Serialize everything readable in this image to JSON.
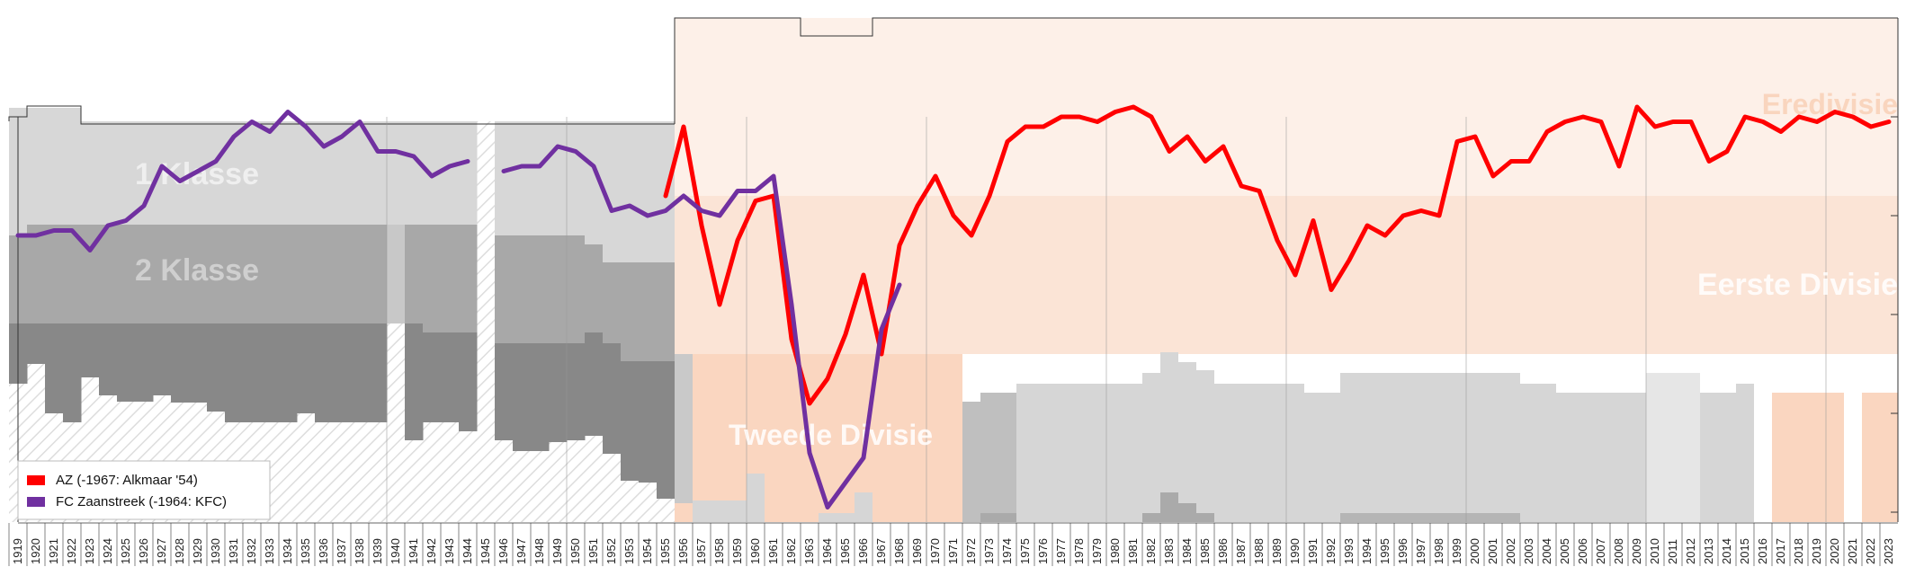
{
  "chart_data": {
    "type": "line",
    "x_start": 1919,
    "x_end": 2023,
    "y_inverted": true,
    "tiers": [
      {
        "name": "1 Klasse",
        "era": "pre-1956",
        "color": "#d7d7d7"
      },
      {
        "name": "2 Klasse",
        "era": "pre-1956",
        "color": "#a8a8a8"
      },
      {
        "name": "",
        "era": "pre-1956",
        "color": "#888888"
      },
      {
        "name": "Eredivisie",
        "era": "post-1956",
        "color": "#fdf0e8"
      },
      {
        "name": "Eerste Divisie",
        "era": "post-1956",
        "color": "#fbe4d6"
      },
      {
        "name": "Tweede Divisie",
        "era": "post-1956",
        "color": "#fad6c0"
      }
    ],
    "series": [
      {
        "name": "AZ (-1967: Alkmaar '54)",
        "color": "#ff0000",
        "points": [
          [
            1955,
            36
          ],
          [
            1956,
            22
          ],
          [
            1957,
            42
          ],
          [
            1958,
            58
          ],
          [
            1959,
            45
          ],
          [
            1960,
            37
          ],
          [
            1961,
            36
          ],
          [
            1962,
            65
          ],
          [
            1963,
            78
          ],
          [
            1964,
            73
          ],
          [
            1965,
            64
          ],
          [
            1966,
            52
          ],
          [
            1967,
            68
          ],
          [
            1968,
            46
          ],
          [
            1969,
            38
          ],
          [
            1970,
            32
          ],
          [
            1971,
            40
          ],
          [
            1972,
            44
          ],
          [
            1973,
            36
          ],
          [
            1974,
            25
          ],
          [
            1975,
            22
          ],
          [
            1976,
            22
          ],
          [
            1977,
            20
          ],
          [
            1978,
            20
          ],
          [
            1979,
            21
          ],
          [
            1980,
            19
          ],
          [
            1981,
            18
          ],
          [
            1982,
            20
          ],
          [
            1983,
            27
          ],
          [
            1984,
            24
          ],
          [
            1985,
            29
          ],
          [
            1986,
            26
          ],
          [
            1987,
            34
          ],
          [
            1988,
            35
          ],
          [
            1989,
            45
          ],
          [
            1990,
            52
          ],
          [
            1991,
            41
          ],
          [
            1992,
            55
          ],
          [
            1993,
            49
          ],
          [
            1994,
            42
          ],
          [
            1995,
            44
          ],
          [
            1996,
            40
          ],
          [
            1997,
            39
          ],
          [
            1998,
            40
          ],
          [
            1999,
            25
          ],
          [
            2000,
            24
          ],
          [
            2001,
            32
          ],
          [
            2002,
            29
          ],
          [
            2003,
            29
          ],
          [
            2004,
            23
          ],
          [
            2005,
            21
          ],
          [
            2006,
            20
          ],
          [
            2007,
            21
          ],
          [
            2008,
            30
          ],
          [
            2009,
            18
          ],
          [
            2010,
            22
          ],
          [
            2011,
            21
          ],
          [
            2012,
            21
          ],
          [
            2013,
            29
          ],
          [
            2014,
            27
          ],
          [
            2015,
            20
          ],
          [
            2016,
            21
          ],
          [
            2017,
            23
          ],
          [
            2018,
            20
          ],
          [
            2019,
            21
          ],
          [
            2020,
            19
          ],
          [
            2021,
            20
          ],
          [
            2022,
            22
          ],
          [
            2023,
            21
          ]
        ]
      },
      {
        "name": "FC Zaanstreek (-1964: KFC)",
        "color": "#7030a0",
        "segments": [
          [
            [
              1919,
              44
            ],
            [
              1920,
              44
            ],
            [
              1921,
              43
            ],
            [
              1922,
              43
            ],
            [
              1923,
              47
            ],
            [
              1924,
              42
            ],
            [
              1925,
              41
            ],
            [
              1926,
              38
            ],
            [
              1927,
              30
            ],
            [
              1928,
              33
            ],
            [
              1929,
              31
            ],
            [
              1930,
              29
            ],
            [
              1931,
              24
            ],
            [
              1932,
              21
            ],
            [
              1933,
              23
            ],
            [
              1934,
              19
            ],
            [
              1935,
              22
            ],
            [
              1936,
              26
            ],
            [
              1937,
              24
            ],
            [
              1938,
              21
            ],
            [
              1939,
              27
            ],
            [
              1940,
              27
            ],
            [
              1941,
              28
            ],
            [
              1942,
              32
            ],
            [
              1943,
              30
            ],
            [
              1944,
              29
            ]
          ],
          [
            [
              1946,
              31
            ],
            [
              1947,
              30
            ],
            [
              1948,
              30
            ],
            [
              1949,
              26
            ],
            [
              1950,
              27
            ],
            [
              1951,
              30
            ],
            [
              1952,
              39
            ],
            [
              1953,
              38
            ],
            [
              1954,
              40
            ],
            [
              1955,
              39
            ],
            [
              1956,
              36
            ],
            [
              1957,
              39
            ],
            [
              1958,
              40
            ],
            [
              1959,
              35
            ],
            [
              1960,
              35
            ],
            [
              1961,
              32
            ],
            [
              1962,
              58
            ],
            [
              1963,
              88
            ],
            [
              1964,
              99
            ],
            [
              1965,
              94
            ],
            [
              1966,
              89
            ],
            [
              1967,
              63
            ],
            [
              1968,
              54
            ]
          ]
        ]
      }
    ],
    "legend": {
      "position": "bottom-left"
    }
  }
}
